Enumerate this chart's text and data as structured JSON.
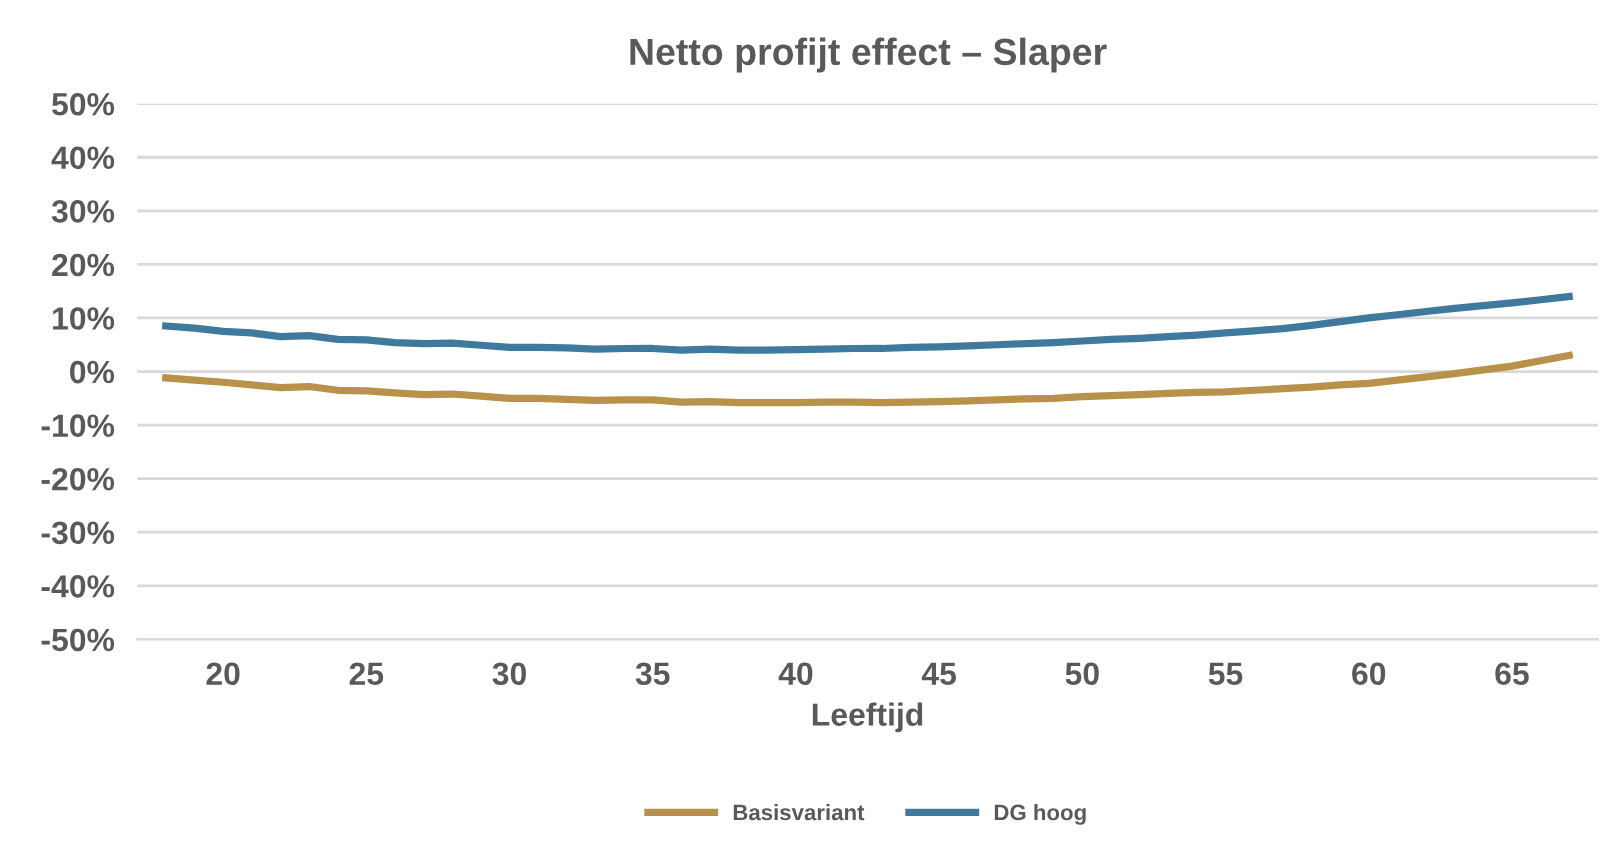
{
  "chart_data": {
    "type": "line",
    "title": "Netto profijt effect – Slaper",
    "xlabel": "Leeftijd",
    "x": [
      18,
      19,
      20,
      21,
      22,
      23,
      24,
      25,
      26,
      27,
      28,
      29,
      30,
      31,
      32,
      33,
      34,
      35,
      36,
      37,
      38,
      39,
      40,
      41,
      42,
      43,
      44,
      45,
      46,
      47,
      48,
      49,
      50,
      51,
      52,
      53,
      54,
      55,
      56,
      57,
      58,
      59,
      60,
      61,
      62,
      63,
      64,
      65,
      66,
      67
    ],
    "series": [
      {
        "name": "Basisvariant",
        "color": "#b8924a",
        "values": [
          -1.2,
          -1.6,
          -2.0,
          -2.5,
          -3.0,
          -2.8,
          -3.5,
          -3.6,
          -4.0,
          -4.3,
          -4.2,
          -4.6,
          -5.0,
          -5.0,
          -5.2,
          -5.4,
          -5.3,
          -5.3,
          -5.7,
          -5.6,
          -5.8,
          -5.8,
          -5.8,
          -5.7,
          -5.7,
          -5.8,
          -5.7,
          -5.6,
          -5.5,
          -5.3,
          -5.1,
          -5.0,
          -4.7,
          -4.5,
          -4.3,
          -4.1,
          -3.9,
          -3.8,
          -3.5,
          -3.2,
          -2.9,
          -2.5,
          -2.2,
          -1.6,
          -1.0,
          -0.4,
          0.3,
          1.0,
          2.0,
          3.0
        ]
      },
      {
        "name": "DG hoog",
        "color": "#40799e",
        "values": [
          8.5,
          8.1,
          7.5,
          7.2,
          6.5,
          6.7,
          6.0,
          5.9,
          5.4,
          5.2,
          5.3,
          4.9,
          4.5,
          4.5,
          4.4,
          4.2,
          4.3,
          4.3,
          4.0,
          4.2,
          4.0,
          4.0,
          4.1,
          4.2,
          4.3,
          4.3,
          4.5,
          4.6,
          4.8,
          5.0,
          5.2,
          5.4,
          5.7,
          6.0,
          6.2,
          6.5,
          6.8,
          7.2,
          7.6,
          8.0,
          8.6,
          9.3,
          10.0,
          10.6,
          11.2,
          11.8,
          12.3,
          12.8,
          13.4,
          14.0
        ]
      }
    ],
    "xlim": [
      17,
      68
    ],
    "xticks": [
      20,
      25,
      30,
      35,
      40,
      45,
      50,
      55,
      60,
      65
    ],
    "ylim": [
      -50,
      50
    ],
    "yticks": [
      {
        "value": -50,
        "label": "-50%"
      },
      {
        "value": -40,
        "label": "-40%"
      },
      {
        "value": -30,
        "label": "-30%"
      },
      {
        "value": -20,
        "label": "-20%"
      },
      {
        "value": -10,
        "label": "-10%"
      },
      {
        "value": 0,
        "label": "0%"
      },
      {
        "value": 10,
        "label": "10%"
      },
      {
        "value": 20,
        "label": "20%"
      },
      {
        "value": 30,
        "label": "30%"
      },
      {
        "value": 40,
        "label": "40%"
      },
      {
        "value": 50,
        "label": "50%"
      }
    ],
    "grid": "y",
    "legend": "bottom",
    "marker": "none",
    "line_style": "solid"
  }
}
